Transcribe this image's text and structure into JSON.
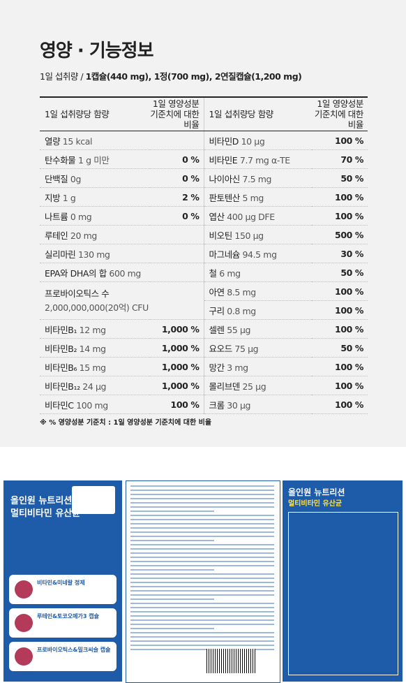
{
  "header": {
    "title": "영양 · 기능정보",
    "serving_label": "1일 섭취량 / ",
    "serving_value": "1캡슐(440 mg), 1정(700 mg), 2연질캡슐(1,200 mg)"
  },
  "table": {
    "headers": [
      "1일 섭취량당 함량",
      "1일 영양성분\n기준치에 대한 비율",
      "1일 섭취량당 함량",
      "1일 영양성분\n기준치에 대한 비율"
    ],
    "left": [
      {
        "name": "열량",
        "amount": "15 kcal"
      },
      {
        "name": "탄수화물",
        "amount": "1 g 미만",
        "percent": "0 %"
      },
      {
        "name": "단백질",
        "amount": "0g",
        "percent": "0 %"
      },
      {
        "name": "지방",
        "amount": "1 g",
        "percent": "2 %"
      },
      {
        "name": "나트륨",
        "amount": "0 mg",
        "percent": "0 %"
      },
      {
        "name": "루테인",
        "amount": "20 mg"
      },
      {
        "name": "실리마린",
        "amount": "130 mg"
      },
      {
        "name": "EPA와 DHA의 합",
        "amount": "600 mg"
      },
      {
        "name": "프로바이오틱스 수",
        "detail": "2,000,000,000(20억) CFU"
      },
      {
        "name": "비타민B₁",
        "amount": "12 mg",
        "percent": "1,000 %"
      },
      {
        "name": "비타민B₂",
        "amount": "14 mg",
        "percent": "1,000 %"
      },
      {
        "name": "비타민B₆",
        "amount": "15 mg",
        "percent": "1,000 %"
      },
      {
        "name": "비타민B₁₂",
        "amount": "24 μg",
        "percent": "1,000 %"
      },
      {
        "name": "비타민C",
        "amount": "100 mg",
        "percent": "100 %"
      }
    ],
    "right": [
      {
        "name": "비타민D",
        "amount": "10 μg",
        "percent": "100 %"
      },
      {
        "name": "비타민E",
        "amount": "7.7 mg α-TE",
        "percent": "70 %"
      },
      {
        "name": "나이아신",
        "amount": "7.5 mg",
        "percent": "50 %"
      },
      {
        "name": "판토텐산",
        "amount": "5 mg",
        "percent": "100 %"
      },
      {
        "name": "엽산",
        "amount": "400 μg DFE",
        "percent": "100 %"
      },
      {
        "name": "비오틴",
        "amount": "150 μg",
        "percent": "500 %"
      },
      {
        "name": "마그네슘",
        "amount": "94.5 mg",
        "percent": "30 %"
      },
      {
        "name": "철",
        "amount": "6 mg",
        "percent": "50 %"
      },
      {
        "name": "아연",
        "amount": "8.5 mg",
        "percent": "100 %"
      },
      {
        "name": "구리",
        "amount": "0.8 mg",
        "percent": "100 %"
      },
      {
        "name": "셀렌",
        "amount": "55 μg",
        "percent": "100 %"
      },
      {
        "name": "요오드",
        "amount": "75 μg",
        "percent": "50 %"
      },
      {
        "name": "망간",
        "amount": "3 mg",
        "percent": "100 %"
      },
      {
        "name": "몰리브덴",
        "amount": "25 μg",
        "percent": "100 %"
      },
      {
        "name": "크롬",
        "amount": "30 μg",
        "percent": "100 %"
      }
    ]
  },
  "footnote": "※ % 영양성분 기준치 : 1일 영양성분 기준치에 대한 비율",
  "package": {
    "brand": "올인원 뉴트리션",
    "product": "멀티비타민 유산균",
    "cards": [
      "비타민&미네랄 정제",
      "루테인&토코오메가3 캡슐",
      "프로바이오틱스&밀크씨슬 캡슐"
    ]
  }
}
